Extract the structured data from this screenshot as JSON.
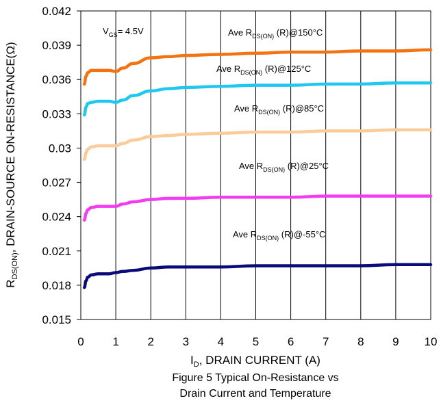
{
  "chart_data": {
    "type": "line",
    "caption": [
      "Figure 5 Typical On-Resistance vs",
      "Drain Current and Temperature"
    ],
    "xlabel": {
      "main": "I",
      "sub": "D",
      "rest": ", DRAIN CURRENT (A)"
    },
    "ylabel": {
      "main": "R",
      "sub": "DS(ON)",
      "rest": ", DRAIN-SOURCE ON-RESISTANCE(Ω)"
    },
    "xlim": [
      0,
      10
    ],
    "ylim": [
      0.015,
      0.042
    ],
    "x_ticks": [
      "0",
      "1",
      "2",
      "3",
      "4",
      "5",
      "6",
      "7",
      "8",
      "9",
      "10"
    ],
    "y_ticks": [
      "0.015",
      "0.018",
      "0.021",
      "0.024",
      "0.027",
      "0.03",
      "0.033",
      "0.036",
      "0.039",
      "0.042"
    ],
    "grid": "vertical",
    "condition": {
      "main": "V",
      "sub": "GS",
      "rest": "= 4.5V"
    },
    "series": [
      {
        "label_pre": "Ave R",
        "label_sub": "DS(ON)",
        "label_post": " (R)@150°C",
        "color": "#F4720F",
        "points": [
          [
            0.1,
            0.0356
          ],
          [
            0.15,
            0.0363
          ],
          [
            0.2,
            0.0366
          ],
          [
            0.3,
            0.0368
          ],
          [
            0.5,
            0.0368
          ],
          [
            0.8,
            0.0368
          ],
          [
            1.0,
            0.0367
          ],
          [
            1.2,
            0.037
          ],
          [
            1.5,
            0.0374
          ],
          [
            2.0,
            0.0379
          ],
          [
            2.5,
            0.038
          ],
          [
            3,
            0.0381
          ],
          [
            4,
            0.0382
          ],
          [
            5,
            0.0383
          ],
          [
            6,
            0.0384
          ],
          [
            7,
            0.0384
          ],
          [
            8,
            0.0385
          ],
          [
            9,
            0.0385
          ],
          [
            10,
            0.0386
          ]
        ]
      },
      {
        "label_pre": "Ave R",
        "label_sub": "DS(ON)",
        "label_post": " (R)@125°C",
        "color": "#1EC8F0",
        "points": [
          [
            0.1,
            0.0329
          ],
          [
            0.15,
            0.0336
          ],
          [
            0.2,
            0.0339
          ],
          [
            0.3,
            0.034
          ],
          [
            0.5,
            0.0341
          ],
          [
            0.8,
            0.0341
          ],
          [
            1.0,
            0.034
          ],
          [
            1.2,
            0.0342
          ],
          [
            1.5,
            0.0346
          ],
          [
            2.0,
            0.035
          ],
          [
            2.5,
            0.0352
          ],
          [
            3,
            0.0353
          ],
          [
            4,
            0.0354
          ],
          [
            5,
            0.0355
          ],
          [
            6,
            0.0355
          ],
          [
            7,
            0.0356
          ],
          [
            8,
            0.0356
          ],
          [
            9,
            0.0357
          ],
          [
            10,
            0.0357
          ]
        ]
      },
      {
        "label_pre": "Ave R",
        "label_sub": "DS(ON)",
        "label_post": " (R)@85°C",
        "color": "#FACC99",
        "points": [
          [
            0.1,
            0.029
          ],
          [
            0.15,
            0.0296
          ],
          [
            0.2,
            0.0299
          ],
          [
            0.3,
            0.0301
          ],
          [
            0.5,
            0.0302
          ],
          [
            0.8,
            0.0302
          ],
          [
            1.0,
            0.0302
          ],
          [
            1.2,
            0.0304
          ],
          [
            1.5,
            0.0307
          ],
          [
            2.0,
            0.031
          ],
          [
            2.5,
            0.0311
          ],
          [
            3,
            0.0312
          ],
          [
            4,
            0.0313
          ],
          [
            5,
            0.0314
          ],
          [
            6,
            0.0314
          ],
          [
            7,
            0.0315
          ],
          [
            8,
            0.0315
          ],
          [
            9,
            0.0316
          ],
          [
            10,
            0.0316
          ]
        ]
      },
      {
        "label_pre": "Ave R",
        "label_sub": "DS(ON)",
        "label_post": " (R)@25°C",
        "color": "#F23CF2",
        "points": [
          [
            0.1,
            0.0237
          ],
          [
            0.15,
            0.0243
          ],
          [
            0.2,
            0.0246
          ],
          [
            0.3,
            0.0248
          ],
          [
            0.5,
            0.0249
          ],
          [
            0.8,
            0.0249
          ],
          [
            1.0,
            0.0249
          ],
          [
            1.2,
            0.0251
          ],
          [
            1.5,
            0.0253
          ],
          [
            2.0,
            0.0255
          ],
          [
            2.5,
            0.0256
          ],
          [
            3,
            0.0256
          ],
          [
            4,
            0.0257
          ],
          [
            5,
            0.0257
          ],
          [
            6,
            0.0257
          ],
          [
            7,
            0.0258
          ],
          [
            8,
            0.0258
          ],
          [
            9,
            0.0258
          ],
          [
            10,
            0.0258
          ]
        ]
      },
      {
        "label_pre": "Ave R",
        "label_sub": "DS(ON)",
        "label_post": " (R)@-55°C",
        "color": "#0A0A7A",
        "points": [
          [
            0.1,
            0.0178
          ],
          [
            0.15,
            0.0184
          ],
          [
            0.2,
            0.0187
          ],
          [
            0.3,
            0.0189
          ],
          [
            0.5,
            0.019
          ],
          [
            0.8,
            0.019
          ],
          [
            1.0,
            0.0191
          ],
          [
            1.2,
            0.0192
          ],
          [
            1.5,
            0.0193
          ],
          [
            2.0,
            0.0195
          ],
          [
            2.5,
            0.0196
          ],
          [
            3,
            0.0196
          ],
          [
            4,
            0.0196
          ],
          [
            5,
            0.0197
          ],
          [
            6,
            0.0197
          ],
          [
            7,
            0.0197
          ],
          [
            8,
            0.0197
          ],
          [
            9,
            0.0198
          ],
          [
            10,
            0.0198
          ]
        ]
      }
    ]
  }
}
